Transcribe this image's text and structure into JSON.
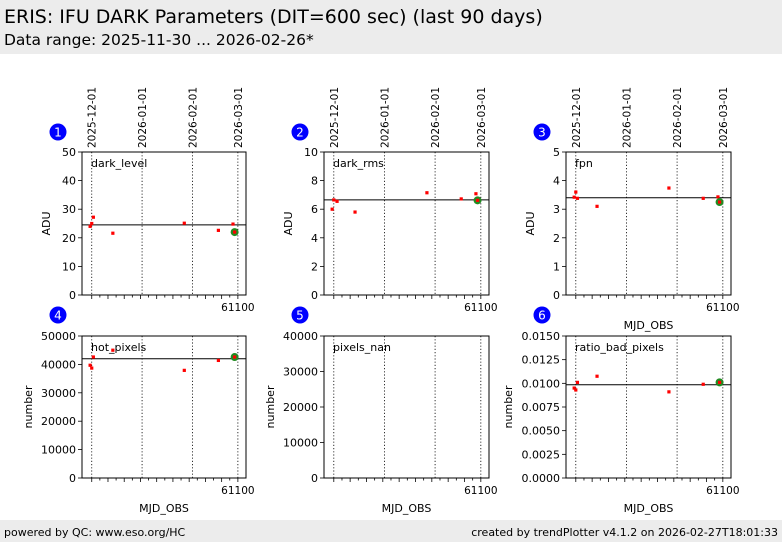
{
  "header": {
    "title": "ERIS: IFU DARK Parameters (DIT=600 sec) (last 90 days)",
    "subtitle": "Data range: 2025-11-30 ... 2026-02-26*"
  },
  "footer": {
    "left": "powered by QC: www.eso.org/HC",
    "right": "created by trendPlotter v4.1.2 on 2026-02-27T18:01:33"
  },
  "colors": {
    "point": "#ff0000",
    "latest_point": "#228b22",
    "badge": "#0000ff",
    "header_bg": "#ececec"
  },
  "chart_data": [
    {
      "type": "scatter",
      "panel": 1,
      "label": "dark_level",
      "ylabel": "ADU",
      "xlabel": "",
      "xlim": [
        61004,
        61105
      ],
      "x_ticks": [
        61100
      ],
      "x_tick_labels": [
        "61100"
      ],
      "show_x_tick_labels": true,
      "ylim": [
        0,
        50
      ],
      "y_ticks": [
        0,
        10,
        20,
        30,
        40,
        50
      ],
      "y_tick_labels": [
        "0",
        "10",
        "20",
        "30",
        "40",
        "50"
      ],
      "date_lines": [
        61010,
        61041,
        61072,
        61100
      ],
      "date_labels": [
        "2025-12-01",
        "2026-01-01",
        "2026-02-01",
        "2026-03-01"
      ],
      "reference_line": 24.5,
      "points": [
        [
          61009,
          24.0
        ],
        [
          61010,
          25.0
        ],
        [
          61011,
          27.2
        ],
        [
          61023,
          21.6
        ],
        [
          61067,
          25.1
        ],
        [
          61088,
          22.6
        ],
        [
          61097,
          24.8
        ]
      ],
      "latest": [
        61098,
        22.0
      ]
    },
    {
      "type": "scatter",
      "panel": 2,
      "label": "dark_rms",
      "ylabel": "ADU",
      "xlabel": "",
      "xlim": [
        61004,
        61105
      ],
      "x_ticks": [
        61100
      ],
      "x_tick_labels": [
        "61100"
      ],
      "show_x_tick_labels": true,
      "ylim": [
        0,
        10
      ],
      "y_ticks": [
        0,
        2,
        4,
        6,
        8,
        10
      ],
      "y_tick_labels": [
        "0",
        "2",
        "4",
        "6",
        "8",
        "10"
      ],
      "date_lines": [
        61010,
        61041,
        61072,
        61100
      ],
      "date_labels": [
        "2025-12-01",
        "2026-01-01",
        "2026-02-01",
        "2026-03-01"
      ],
      "reference_line": 6.65,
      "points": [
        [
          61009,
          6.0
        ],
        [
          61010,
          6.65
        ],
        [
          61012,
          6.55
        ],
        [
          61023,
          5.8
        ],
        [
          61067,
          7.15
        ],
        [
          61088,
          6.72
        ],
        [
          61097,
          7.08
        ]
      ],
      "latest": [
        61098,
        6.62
      ]
    },
    {
      "type": "scatter",
      "panel": 3,
      "label": "fpn",
      "ylabel": "ADU",
      "xlabel": "MJD_OBS",
      "xlim": [
        61004,
        61105
      ],
      "x_ticks": [
        61100
      ],
      "x_tick_labels": [
        "61100"
      ],
      "show_x_tick_labels": true,
      "ylim": [
        0,
        5
      ],
      "y_ticks": [
        0,
        1,
        2,
        3,
        4,
        5
      ],
      "y_tick_labels": [
        "0",
        "1",
        "2",
        "3",
        "4",
        "5"
      ],
      "date_lines": [
        61010,
        61041,
        61072,
        61100
      ],
      "date_labels": [
        "2025-12-01",
        "2026-01-01",
        "2026-02-01",
        "2026-03-01"
      ],
      "reference_line": 3.4,
      "points": [
        [
          61009,
          3.42
        ],
        [
          61010,
          3.6
        ],
        [
          61011,
          3.38
        ],
        [
          61023,
          3.1
        ],
        [
          61067,
          3.74
        ],
        [
          61088,
          3.38
        ],
        [
          61097,
          3.43
        ]
      ],
      "latest": [
        61098,
        3.25
      ]
    },
    {
      "type": "scatter",
      "panel": 4,
      "label": "hot_pixels",
      "ylabel": "number",
      "xlabel": "MJD_OBS",
      "xlim": [
        61004,
        61105
      ],
      "x_ticks": [
        61100
      ],
      "x_tick_labels": [
        "61100"
      ],
      "show_x_tick_labels": true,
      "ylim": [
        0,
        50000
      ],
      "y_ticks": [
        0,
        10000,
        20000,
        30000,
        40000,
        50000
      ],
      "y_tick_labels": [
        "0",
        "10000",
        "20000",
        "30000",
        "40000",
        "50000"
      ],
      "date_lines": [
        61010,
        61041,
        61072,
        61100
      ],
      "date_labels": [],
      "reference_line": 42000,
      "points": [
        [
          61009,
          39700
        ],
        [
          61010,
          38700
        ],
        [
          61011,
          42600
        ],
        [
          61023,
          45000
        ],
        [
          61067,
          37900
        ],
        [
          61088,
          41400
        ],
        [
          61097,
          42400
        ]
      ],
      "latest": [
        61098,
        42600
      ]
    },
    {
      "type": "scatter",
      "panel": 5,
      "label": "pixels_nan",
      "ylabel": "number",
      "xlabel": "MJD_OBS",
      "xlim": [
        61004,
        61105
      ],
      "x_ticks": [
        61100
      ],
      "x_tick_labels": [
        "61100"
      ],
      "show_x_tick_labels": true,
      "ylim": [
        0,
        40000
      ],
      "y_ticks": [
        0,
        10000,
        20000,
        30000,
        40000
      ],
      "y_tick_labels": [
        "0",
        "10000",
        "20000",
        "30000",
        "40000"
      ],
      "date_lines": [
        61010,
        61041,
        61072,
        61100
      ],
      "date_labels": [],
      "reference_line": null,
      "points": [],
      "latest": null
    },
    {
      "type": "scatter",
      "panel": 6,
      "label": "ratio_bad_pixels",
      "ylabel": "number",
      "xlabel": "MJD_OBS",
      "xlim": [
        61004,
        61105
      ],
      "x_ticks": [
        61100
      ],
      "x_tick_labels": [
        "61100"
      ],
      "show_x_tick_labels": true,
      "ylim": [
        0,
        0.015
      ],
      "y_ticks": [
        0,
        0.0025,
        0.005,
        0.0075,
        0.01,
        0.0125,
        0.015
      ],
      "y_tick_labels": [
        "0.0000",
        "0.0025",
        "0.0050",
        "0.0075",
        "0.0100",
        "0.0125",
        "0.0150"
      ],
      "date_lines": [
        61010,
        61041,
        61072,
        61100
      ],
      "date_labels": [],
      "reference_line": 0.00985,
      "points": [
        [
          61009,
          0.0095
        ],
        [
          61010,
          0.0093
        ],
        [
          61011,
          0.0101
        ],
        [
          61023,
          0.01075
        ],
        [
          61067,
          0.0091
        ],
        [
          61088,
          0.0099
        ],
        [
          61097,
          0.01005
        ]
      ],
      "latest": [
        61098,
        0.0101
      ]
    }
  ]
}
